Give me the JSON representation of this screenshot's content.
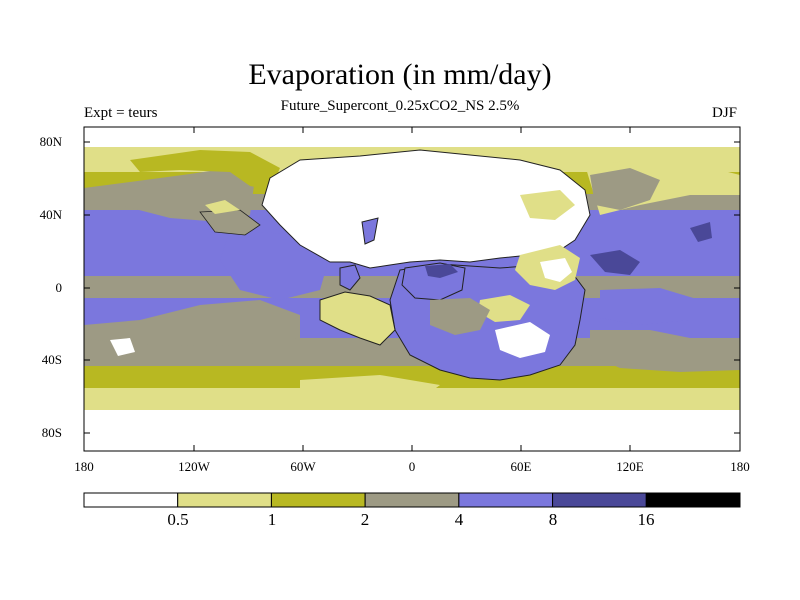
{
  "title": "Evaporation (in mm/day)",
  "subtitle": "Future_Supercont_0.25xCO2_NS 2.5%",
  "left_label": "Expt = teurs",
  "right_label": "DJF",
  "chart_data": {
    "type": "heatmap",
    "title": "Evaporation (in mm/day)",
    "subtitle": "Future_Supercont_0.25xCO2_NS 2.5%",
    "projection": "cylindrical equidistant",
    "lon_range": [
      -180,
      180
    ],
    "lat_range": [
      -90,
      90
    ],
    "lat_ticks": [
      "80N",
      "40N",
      "0",
      "40S",
      "80S"
    ],
    "lon_ticks": [
      "180",
      "120W",
      "60W",
      "0",
      "60E",
      "120E",
      "180"
    ],
    "colorbar": {
      "levels": [
        "0.5",
        "1",
        "2",
        "4",
        "8",
        "16"
      ],
      "colors": [
        "#ffffff",
        "#e0df88",
        "#b8b822",
        "#9d9a84",
        "#7b77dd",
        "#4a4898",
        "#000000"
      ]
    },
    "approx_zonal_pattern": [
      {
        "lat": 85,
        "value_mm_day": 0.3
      },
      {
        "lat": 75,
        "value_mm_day": 0.7
      },
      {
        "lat": 60,
        "value_mm_day": 1.5
      },
      {
        "lat": 50,
        "value_mm_day": 3.0
      },
      {
        "lat": 30,
        "value_mm_day": 5.5
      },
      {
        "lat": 10,
        "value_mm_day": 5.0
      },
      {
        "lat": 0,
        "value_mm_day": 3.0
      },
      {
        "lat": -15,
        "value_mm_day": 5.5
      },
      {
        "lat": -35,
        "value_mm_day": 3.0
      },
      {
        "lat": -48,
        "value_mm_day": 1.5
      },
      {
        "lat": -58,
        "value_mm_day": 0.8
      },
      {
        "lat": -75,
        "value_mm_day": 0.3
      }
    ]
  }
}
